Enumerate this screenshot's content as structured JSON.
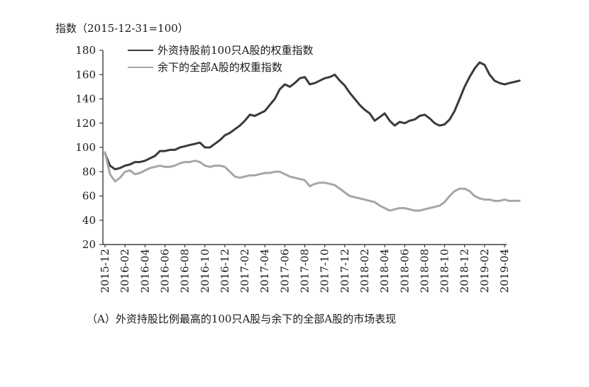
{
  "chart_data": {
    "type": "line",
    "ylabel": "指数（2015-12-31=100）",
    "caption": "（A）外资持股比例最高的100只A股与余下的全部A股的市场表现",
    "ylim": [
      20,
      180
    ],
    "yticks": [
      20,
      40,
      60,
      80,
      100,
      120,
      140,
      160,
      180
    ],
    "categories": [
      "2015-12",
      "2016-02",
      "2016-04",
      "2016-06",
      "2016-08",
      "2016-10",
      "2016-12",
      "2017-02",
      "2017-04",
      "2017-06",
      "2017-08",
      "2017-10",
      "2017-12",
      "2018-02",
      "2018-04",
      "2018-06",
      "2018-08",
      "2018-10",
      "2018-12",
      "2019-02",
      "2019-04"
    ],
    "legend_position": "top-left",
    "grid": false,
    "series": [
      {
        "name": "外资持股前100只A股的权重指数",
        "color": "#3a3a3a",
        "x": [
          0,
          0.5,
          1,
          1.5,
          2,
          2.5,
          3,
          3.5,
          4,
          4.5,
          5,
          5.5,
          6,
          6.5,
          7,
          7.5,
          8,
          8.5,
          9,
          9.5,
          10,
          10.5,
          11,
          11.5,
          12,
          12.5,
          13,
          13.5,
          14,
          14.5,
          15,
          15.5,
          16,
          16.5,
          17,
          17.5,
          18,
          18.5,
          19,
          19.5,
          20,
          20.5,
          21,
          21.5,
          22,
          22.5,
          23,
          23.5,
          24,
          24.5,
          25,
          25.5,
          26,
          26.5,
          27,
          27.5,
          28,
          28.5,
          29,
          29.5,
          30,
          30.5,
          31,
          31.5,
          32,
          32.5,
          33,
          33.5,
          34,
          34.5,
          35,
          35.5,
          36,
          36.5,
          37,
          37.5,
          38,
          38.5,
          39,
          39.5,
          40,
          40.5,
          41,
          41.5
        ],
        "values": [
          95,
          85,
          82,
          83,
          85,
          86,
          88,
          88,
          89,
          91,
          93,
          97,
          97,
          98,
          98,
          100,
          101,
          102,
          103,
          104,
          100,
          100,
          103,
          106,
          110,
          112,
          115,
          118,
          122,
          127,
          126,
          128,
          130,
          135,
          140,
          148,
          152,
          150,
          153,
          157,
          158,
          152,
          153,
          155,
          157,
          158,
          160,
          155,
          151,
          145,
          140,
          135,
          131,
          128,
          122,
          125,
          128,
          122,
          118,
          121,
          120,
          122,
          123,
          126,
          127,
          124,
          120,
          118,
          119,
          123,
          130,
          140,
          150,
          158,
          165,
          170,
          168,
          160,
          155,
          153,
          152,
          153,
          154,
          155
        ]
      },
      {
        "name": "余下的全部A股的权重指数",
        "color": "#a6a6a6",
        "x": [
          0,
          0.5,
          1,
          1.5,
          2,
          2.5,
          3,
          3.5,
          4,
          4.5,
          5,
          5.5,
          6,
          6.5,
          7,
          7.5,
          8,
          8.5,
          9,
          9.5,
          10,
          10.5,
          11,
          11.5,
          12,
          12.5,
          13,
          13.5,
          14,
          14.5,
          15,
          15.5,
          16,
          16.5,
          17,
          17.5,
          18,
          18.5,
          19,
          19.5,
          20,
          20.5,
          21,
          21.5,
          22,
          22.5,
          23,
          23.5,
          24,
          24.5,
          25,
          25.5,
          26,
          26.5,
          27,
          27.5,
          28,
          28.5,
          29,
          29.5,
          30,
          30.5,
          31,
          31.5,
          32,
          32.5,
          33,
          33.5,
          34,
          34.5,
          35,
          35.5,
          36,
          36.5,
          37,
          37.5,
          38,
          38.5,
          39,
          39.5,
          40,
          40.5,
          41,
          41.5
        ],
        "values": [
          96,
          78,
          72,
          75,
          80,
          81,
          78,
          79,
          81,
          83,
          84,
          85,
          84,
          84,
          85,
          87,
          88,
          88,
          89,
          88,
          85,
          84,
          85,
          85,
          84,
          80,
          76,
          75,
          76,
          77,
          77,
          78,
          79,
          79,
          80,
          80,
          78,
          76,
          75,
          74,
          73,
          68,
          70,
          71,
          71,
          70,
          69,
          66,
          63,
          60,
          59,
          58,
          57,
          56,
          55,
          52,
          50,
          48,
          49,
          50,
          50,
          49,
          48,
          48,
          49,
          50,
          51,
          52,
          55,
          60,
          64,
          66,
          66,
          64,
          60,
          58,
          57,
          57,
          56,
          56,
          57,
          56,
          56,
          56
        ]
      }
    ]
  }
}
